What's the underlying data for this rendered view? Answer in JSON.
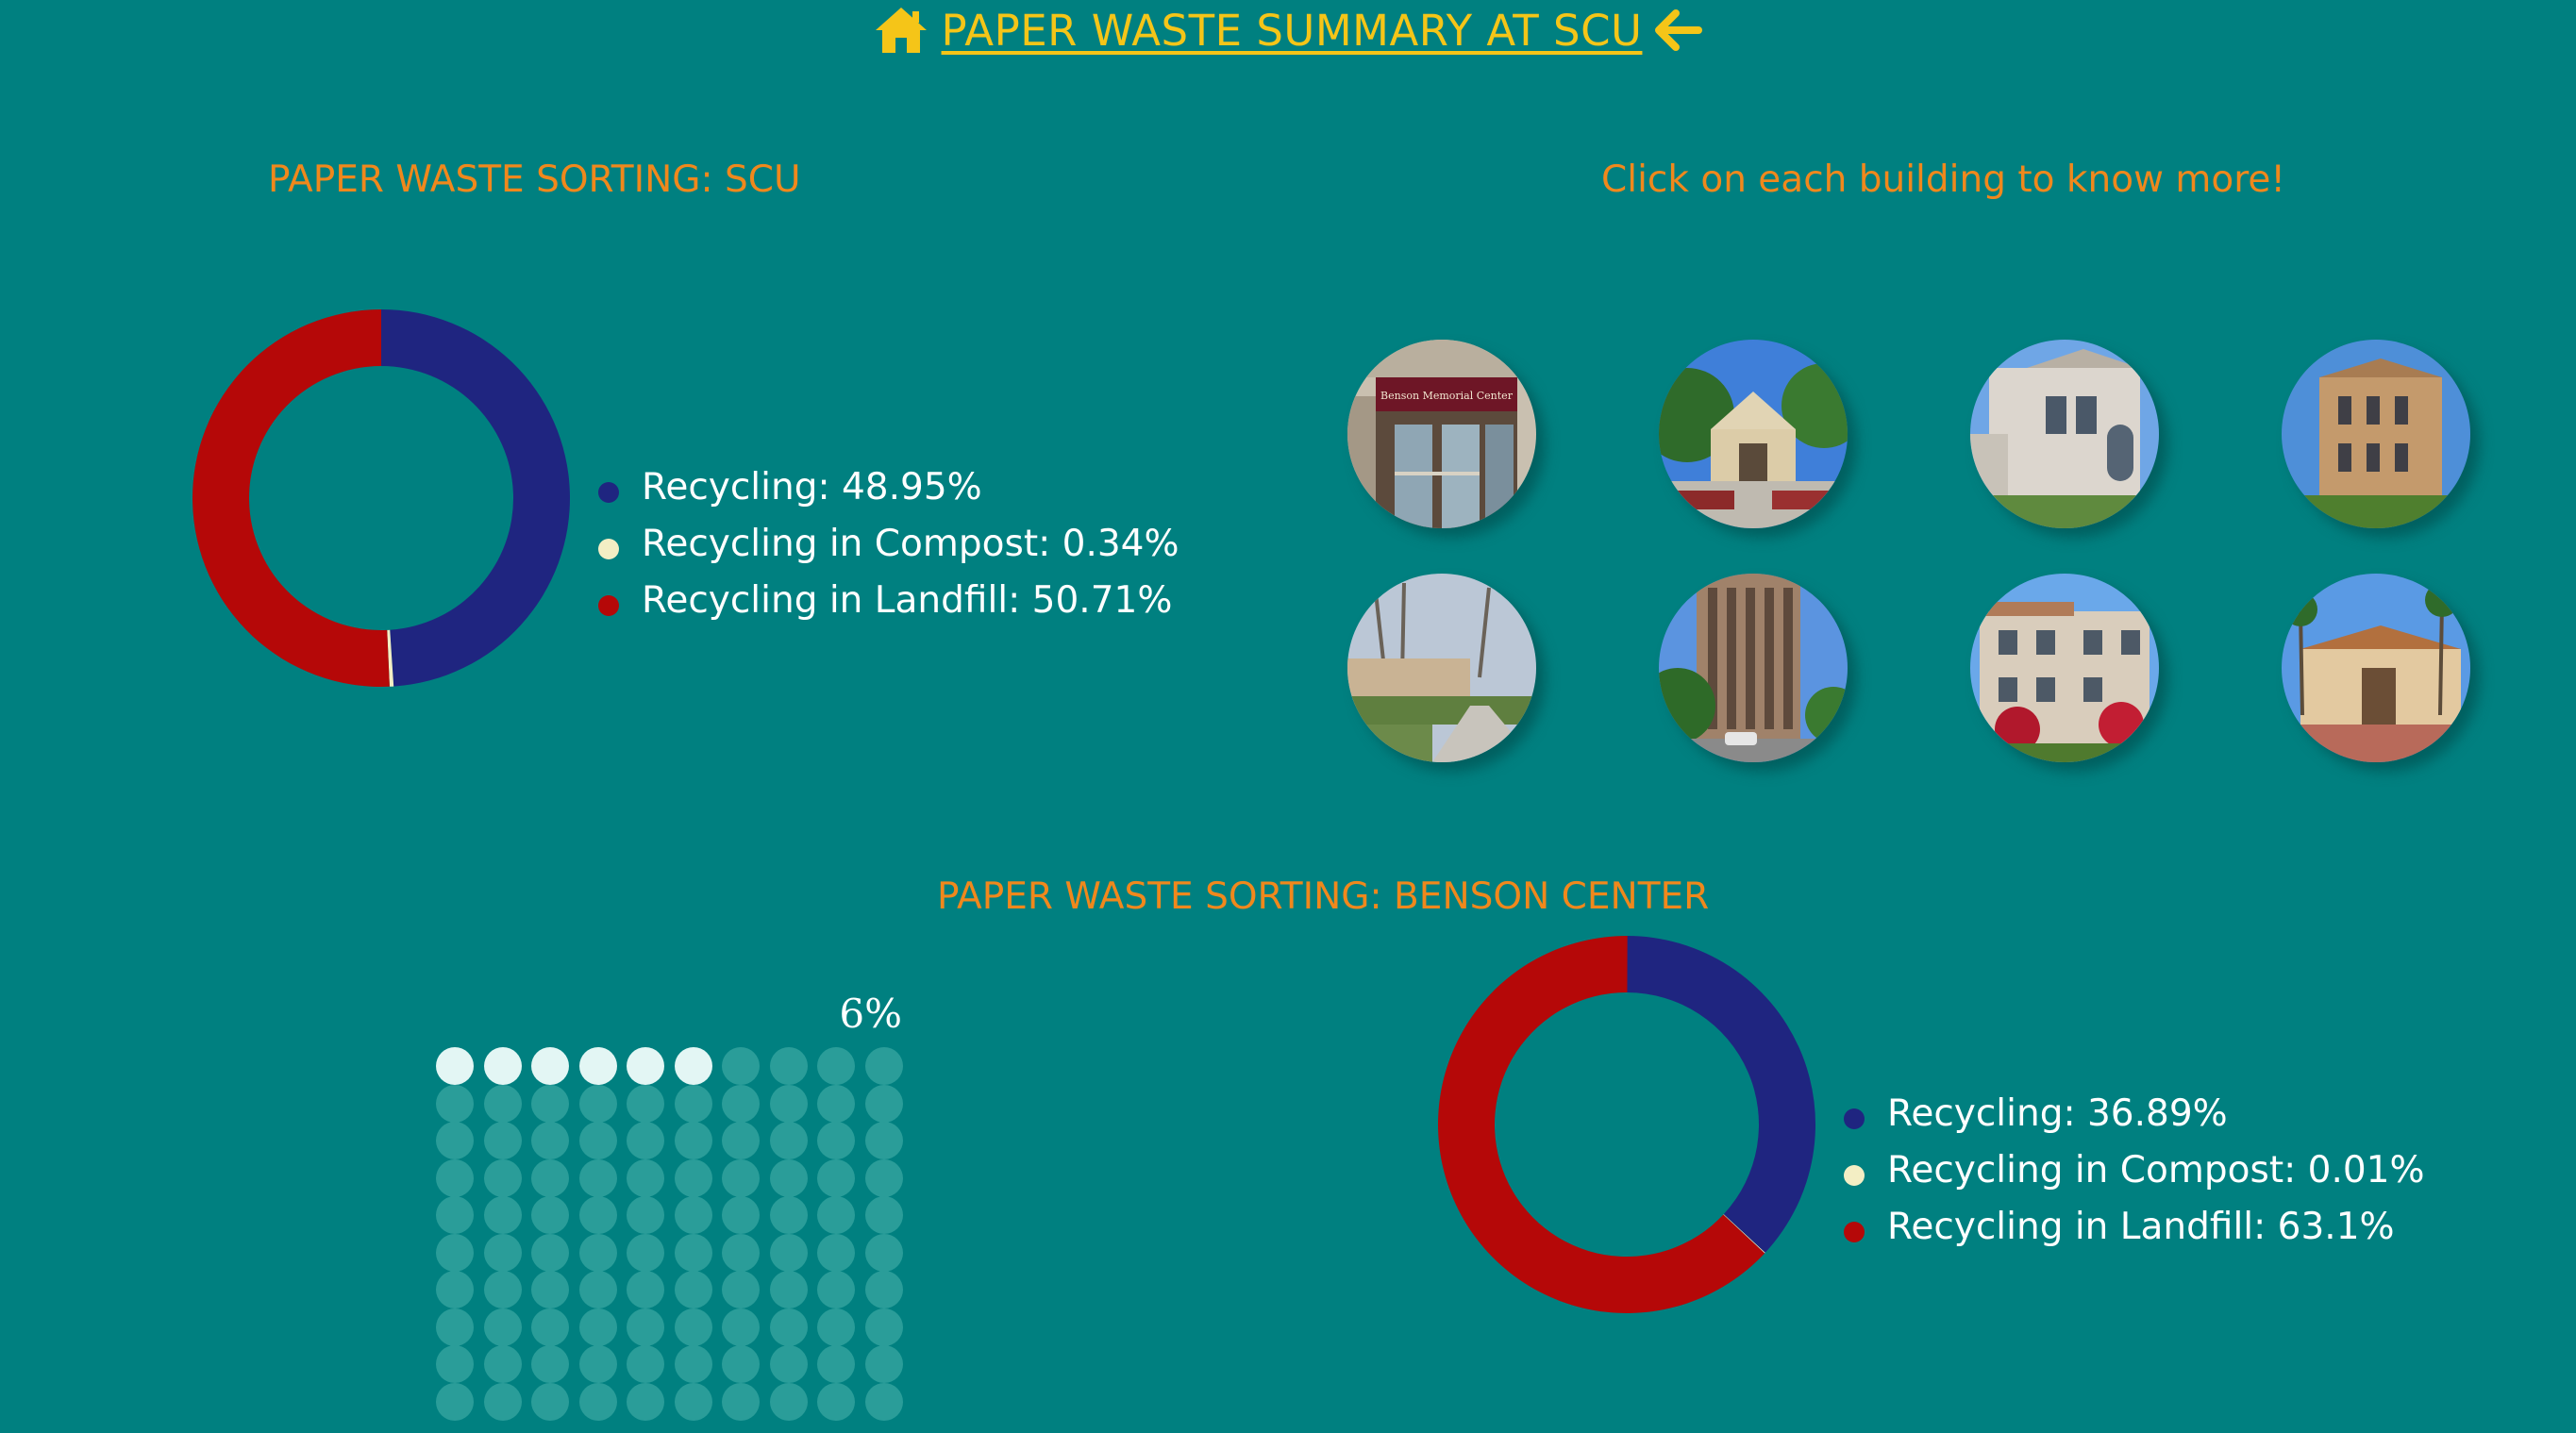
{
  "header": {
    "title": "PAPER WASTE SUMMARY AT SCU",
    "home_icon": "home-icon",
    "back_icon": "arrow-left-icon"
  },
  "scu": {
    "title": "PAPER WASTE SORTING: SCU",
    "legend": [
      {
        "label": "Recycling: 48.95%",
        "color": "#1F2580"
      },
      {
        "label": "Recycling in Compost: 0.34%",
        "color": "#F3EEC4"
      },
      {
        "label": "Recycling in Landfill: 50.71%",
        "color": "#B50808"
      }
    ]
  },
  "buildings": {
    "prompt": "Click on each building to know more!",
    "items": [
      {
        "sign": "Benson Memorial Center"
      },
      {
        "sign": ""
      },
      {
        "sign": ""
      },
      {
        "sign": ""
      },
      {
        "sign": ""
      },
      {
        "sign": ""
      },
      {
        "sign": ""
      },
      {
        "sign": ""
      }
    ]
  },
  "benson": {
    "title": "PAPER WASTE SORTING: BENSON CENTER",
    "waffle_label": "6%",
    "legend": [
      {
        "label": "Recycling: 36.89%",
        "color": "#1F2580"
      },
      {
        "label": "Recycling in Compost: 0.01%",
        "color": "#F3EEC4"
      },
      {
        "label": "Recycling in Landfill: 63.1%",
        "color": "#B50808"
      }
    ]
  },
  "chart_data": [
    {
      "type": "pie",
      "title": "PAPER WASTE SORTING: SCU",
      "categories": [
        "Recycling",
        "Recycling in Compost",
        "Recycling in Landfill"
      ],
      "values": [
        48.95,
        0.34,
        50.71
      ],
      "colors": [
        "#1F2580",
        "#F3EEC4",
        "#B50808"
      ],
      "legend": "right"
    },
    {
      "type": "pie",
      "title": "PAPER WASTE SORTING: BENSON CENTER",
      "categories": [
        "Recycling",
        "Recycling in Compost",
        "Recycling in Landfill"
      ],
      "values": [
        36.89,
        0.01,
        63.1
      ],
      "colors": [
        "#1F2580",
        "#F3EEC4",
        "#B50808"
      ],
      "legend": "right"
    },
    {
      "type": "heatmap",
      "label": "6%",
      "rows": 10,
      "cols": 10,
      "filled": 6,
      "filled_color": "#E3F6F4",
      "empty_color": "#2A9D99"
    }
  ]
}
